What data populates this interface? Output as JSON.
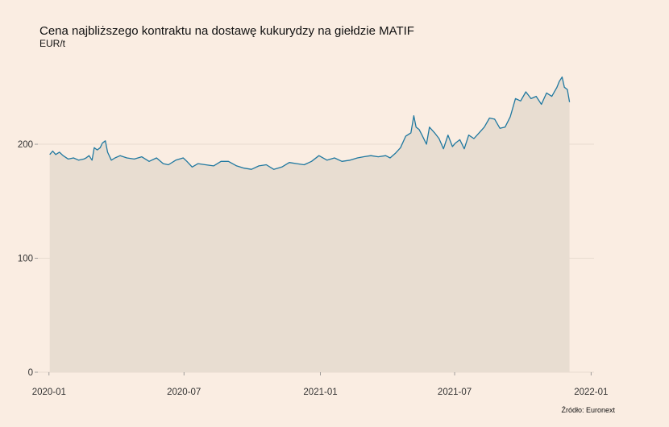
{
  "chart_data": {
    "type": "area",
    "title": "Cena najbliższego kontraktu na dostawę kukurydzy na giełdzie MATIF",
    "subtitle": "EUR/t",
    "source": "Źródło: Euronext",
    "xlabel": "",
    "ylabel": "",
    "ylim": [
      0,
      270
    ],
    "y_ticks": [
      0,
      100,
      200
    ],
    "y_tick_labels": [
      "0",
      "100",
      "200"
    ],
    "x_range": [
      "2019-12-17",
      "2022-01-05"
    ],
    "x_ticks": [
      "2020-01-01",
      "2020-07-01",
      "2021-01-01",
      "2021-07-01",
      "2022-01-01"
    ],
    "x_tick_labels": [
      "2020-01",
      "2020-07",
      "2021-01",
      "2021-07",
      "2022-01"
    ],
    "grid": "horizontal",
    "legend": "none",
    "colors": {
      "line": "#1f78a0",
      "fill": "#e8ddd1",
      "background": "#faede2",
      "grid": "#e2d6ca"
    },
    "series": [
      {
        "x": [
          "2020-01-02",
          "2020-01-06",
          "2020-01-10",
          "2020-01-15",
          "2020-01-20",
          "2020-01-27",
          "2020-02-03",
          "2020-02-10",
          "2020-02-17",
          "2020-02-20",
          "2020-02-24",
          "2020-02-28",
          "2020-03-02",
          "2020-03-06",
          "2020-03-10",
          "2020-03-13",
          "2020-03-17",
          "2020-03-20",
          "2020-03-25",
          "2020-03-30",
          "2020-04-06",
          "2020-04-15",
          "2020-04-25",
          "2020-05-05",
          "2020-05-15",
          "2020-05-25",
          "2020-06-03",
          "2020-06-10",
          "2020-06-20",
          "2020-06-30",
          "2020-07-05",
          "2020-07-12",
          "2020-07-20",
          "2020-07-30",
          "2020-08-10",
          "2020-08-20",
          "2020-08-30",
          "2020-09-10",
          "2020-09-20",
          "2020-09-30",
          "2020-10-10",
          "2020-10-20",
          "2020-10-30",
          "2020-11-10",
          "2020-11-20",
          "2020-11-30",
          "2020-12-10",
          "2020-12-20",
          "2020-12-30",
          "2021-01-10",
          "2021-01-20",
          "2021-01-30",
          "2021-02-10",
          "2021-02-20",
          "2021-02-28",
          "2021-03-10",
          "2021-03-20",
          "2021-03-30",
          "2021-04-05",
          "2021-04-12",
          "2021-04-19",
          "2021-04-26",
          "2021-05-03",
          "2021-05-07",
          "2021-05-10",
          "2021-05-14",
          "2021-05-18",
          "2021-05-24",
          "2021-05-28",
          "2021-06-04",
          "2021-06-10",
          "2021-06-16",
          "2021-06-22",
          "2021-06-28",
          "2021-07-02",
          "2021-07-08",
          "2021-07-14",
          "2021-07-20",
          "2021-07-27",
          "2021-08-03",
          "2021-08-10",
          "2021-08-17",
          "2021-08-24",
          "2021-08-31",
          "2021-09-07",
          "2021-09-14",
          "2021-09-21",
          "2021-09-28",
          "2021-10-05",
          "2021-10-12",
          "2021-10-19",
          "2021-10-26",
          "2021-11-02",
          "2021-11-09",
          "2021-11-16",
          "2021-11-19",
          "2021-11-23",
          "2021-11-26",
          "2021-11-30",
          "2021-12-03"
        ],
        "values": [
          191,
          194,
          191,
          193,
          190,
          187,
          188,
          186,
          187,
          188,
          190,
          186,
          197,
          195,
          197,
          201,
          203,
          193,
          186,
          188,
          190,
          188,
          187,
          189,
          185,
          188,
          183,
          182,
          186,
          188,
          185,
          180,
          183,
          182,
          181,
          185,
          185,
          181,
          179,
          178,
          181,
          182,
          178,
          180,
          184,
          183,
          182,
          185,
          190,
          186,
          188,
          185,
          186,
          188,
          189,
          190,
          189,
          190,
          188,
          192,
          197,
          207,
          210,
          225,
          215,
          213,
          208,
          200,
          215,
          210,
          205,
          196,
          208,
          198,
          201,
          204,
          196,
          208,
          205,
          210,
          215,
          223,
          222,
          214,
          215,
          224,
          240,
          238,
          246,
          240,
          242,
          235,
          245,
          242,
          250,
          255,
          259,
          250,
          248,
          237
        ]
      }
    ]
  }
}
